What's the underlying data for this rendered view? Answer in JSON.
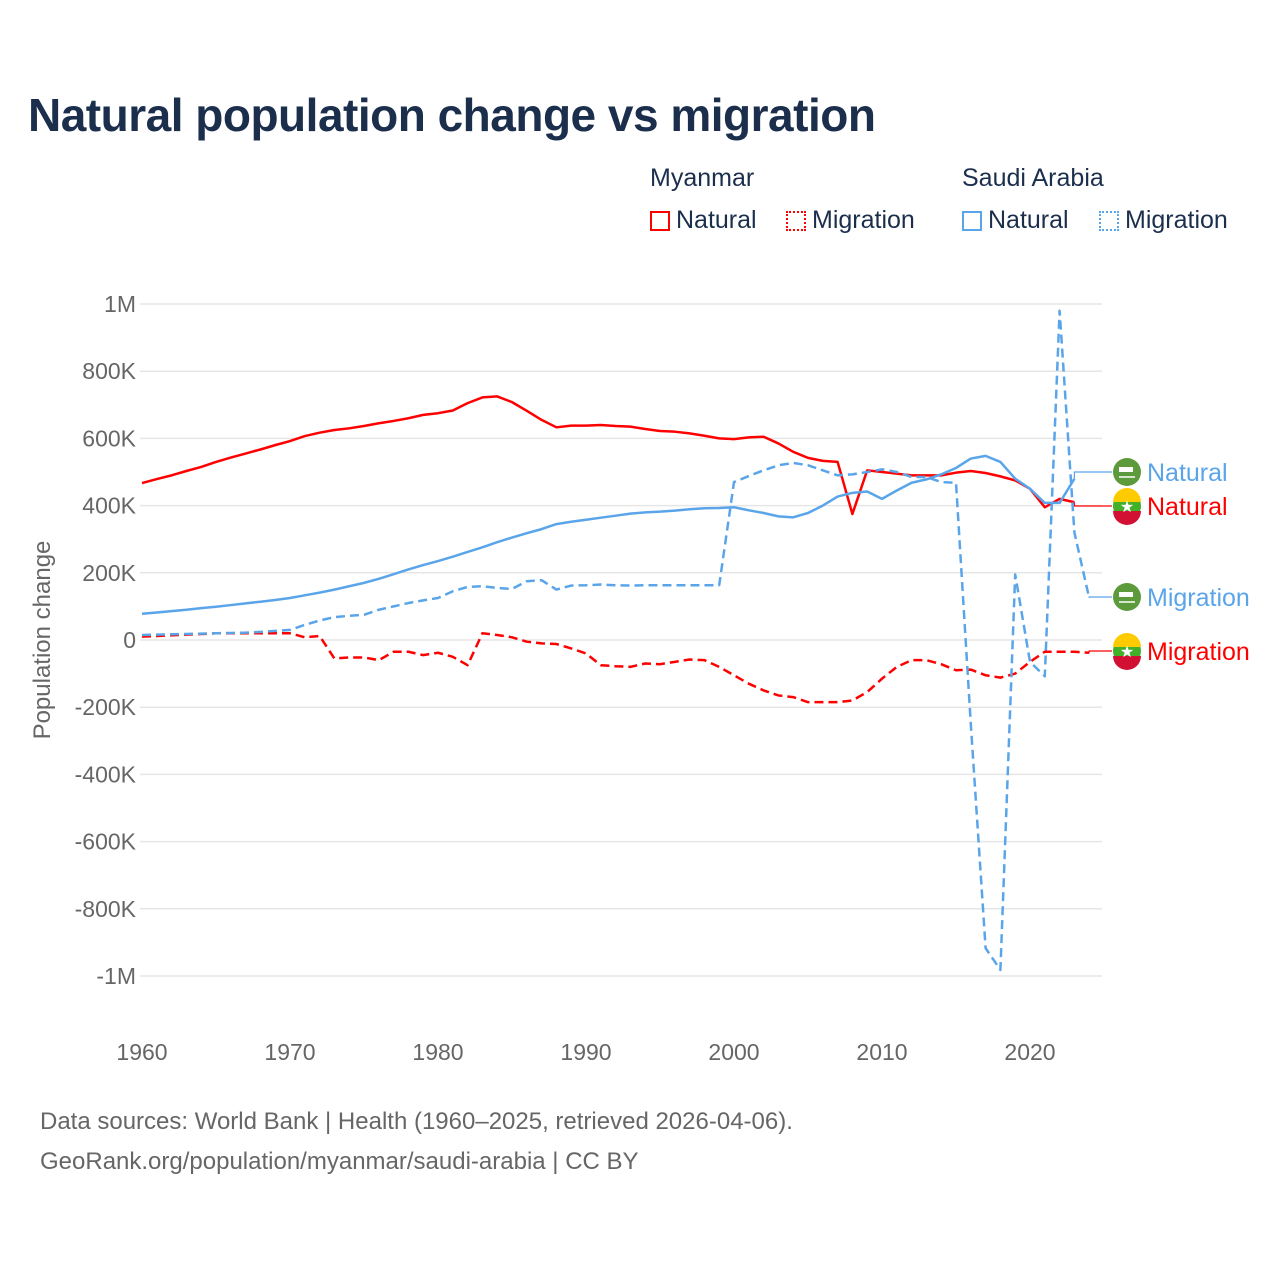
{
  "title": "Natural population change vs migration",
  "legend": {
    "groups": [
      {
        "name": "Myanmar",
        "items": [
          "Natural",
          "Migration"
        ]
      },
      {
        "name": "Saudi Arabia",
        "items": [
          "Natural",
          "Migration"
        ]
      }
    ]
  },
  "colors": {
    "myanmar": "#ff0000",
    "saudi": "#5aa5ea"
  },
  "sources": [
    "Data sources: World Bank | Health (1960–2025, retrieved 2026-04-06).",
    "GeoRank.org/population/myanmar/saudi-arabia | CC BY"
  ],
  "chart_data": {
    "type": "line",
    "title": "Natural population change vs migration",
    "xlabel": "",
    "ylabel": "Population change",
    "xlim": [
      1960,
      2025
    ],
    "ylim": [
      -1000000,
      1000000
    ],
    "xticks": [
      1960,
      1970,
      1980,
      1990,
      2000,
      2010,
      2020
    ],
    "xtick_labels": [
      "1960",
      "1970",
      "1980",
      "1990",
      "2000",
      "2010",
      "2020"
    ],
    "yticks": [
      1000000,
      800000,
      600000,
      400000,
      200000,
      0,
      -200000,
      -400000,
      -600000,
      -800000,
      -1000000
    ],
    "ytick_labels": [
      "1M",
      "800K",
      "600K",
      "400K",
      "200K",
      "0",
      "-200K",
      "-400K",
      "-600K",
      "-800K",
      "-1M"
    ],
    "grid": true,
    "legend_position": "top-right",
    "start_year": 1960,
    "series": [
      {
        "name": "Myanmar Natural",
        "end_label": "Natural",
        "color": "#ff0000",
        "dash": false,
        "values": [
          467,
          479,
          490,
          503,
          515,
          530,
          543,
          555,
          567,
          580,
          592,
          607,
          617,
          625,
          630,
          637,
          645,
          652,
          660,
          670,
          675,
          683,
          705,
          722,
          725,
          708,
          682,
          655,
          633,
          638,
          638,
          640,
          637,
          635,
          628,
          622,
          620,
          615,
          608,
          600,
          598,
          603,
          605,
          585,
          560,
          542,
          533,
          530,
          375,
          505,
          500,
          495,
          490,
          490,
          490,
          498,
          503,
          497,
          487,
          475,
          450,
          395,
          420,
          410
        ]
      },
      {
        "name": "Myanmar Migration",
        "end_label": "Migration",
        "color": "#ff0000",
        "dash": true,
        "values": [
          10,
          12,
          14,
          16,
          18,
          20,
          20,
          20,
          20,
          20,
          20,
          8,
          12,
          -55,
          -52,
          -52,
          -60,
          -35,
          -35,
          -45,
          -38,
          -50,
          -75,
          20,
          15,
          8,
          -5,
          -10,
          -12,
          -25,
          -40,
          -75,
          -78,
          -80,
          -70,
          -72,
          -65,
          -58,
          -60,
          -80,
          -105,
          -130,
          -150,
          -165,
          -170,
          -185,
          -185,
          -185,
          -180,
          -155,
          -115,
          -80,
          -60,
          -60,
          -72,
          -90,
          -88,
          -105,
          -112,
          -100,
          -65,
          -35,
          -35,
          -35,
          -38
        ]
      },
      {
        "name": "Saudi Arabia Natural",
        "end_label": "Natural",
        "color": "#5aa5ea",
        "dash": false,
        "values": [
          78,
          82,
          86,
          90,
          95,
          99,
          104,
          109,
          114,
          119,
          125,
          133,
          141,
          150,
          160,
          170,
          182,
          196,
          210,
          223,
          235,
          248,
          262,
          276,
          291,
          305,
          318,
          330,
          345,
          352,
          358,
          364,
          370,
          376,
          380,
          382,
          385,
          389,
          392,
          393,
          395,
          386,
          378,
          368,
          365,
          378,
          400,
          427,
          438,
          442,
          420,
          445,
          468,
          478,
          493,
          512,
          540,
          548,
          530,
          480,
          450,
          408,
          408,
          480
        ]
      },
      {
        "name": "Saudi Arabia Migration",
        "end_label": "Migration",
        "color": "#5aa5ea",
        "dash": true,
        "values": [
          15,
          16,
          17,
          18,
          19,
          20,
          21,
          22,
          24,
          27,
          30,
          45,
          58,
          68,
          72,
          75,
          90,
          100,
          110,
          118,
          125,
          145,
          158,
          160,
          155,
          152,
          175,
          178,
          150,
          162,
          163,
          165,
          163,
          162,
          163,
          163,
          163,
          163,
          163,
          163,
          470,
          488,
          505,
          520,
          527,
          520,
          505,
          490,
          493,
          500,
          508,
          500,
          485,
          485,
          470,
          468,
          -250,
          -917,
          -982,
          195,
          -65,
          -108,
          980,
          320,
          125
        ]
      }
    ]
  }
}
